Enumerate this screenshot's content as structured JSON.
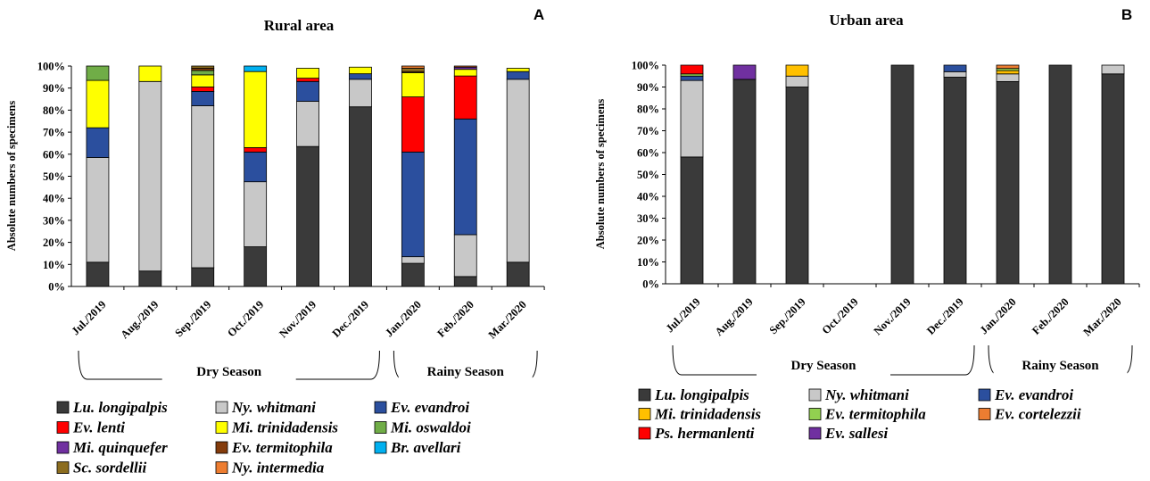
{
  "chart_data": [
    {
      "type": "bar",
      "stacked": true,
      "title": "Rural area",
      "panel_letter": "A",
      "ylabel": "Absolute numbers of specimens",
      "ylim": [
        0,
        100
      ],
      "yticks": [
        "0%",
        "10%",
        "20%",
        "30%",
        "40%",
        "50%",
        "60%",
        "70%",
        "80%",
        "90%",
        "100%"
      ],
      "categories": [
        "Jul./2019",
        "Aug./2019",
        "Sep./2019",
        "Oct./2019",
        "Nov./2019",
        "Dec./2019",
        "Jan./2020",
        "Feb./2020",
        "Mar./2020"
      ],
      "seasons": [
        {
          "label": "Dry Season",
          "from": 0,
          "to": 5
        },
        {
          "label": "Rainy Season",
          "from": 6,
          "to": 8
        }
      ],
      "series": [
        {
          "name": "Lu. longipalpis",
          "color": "#3a3a3a",
          "values": [
            11,
            7,
            8.5,
            18,
            63.5,
            81.5,
            10.5,
            4.5,
            11
          ]
        },
        {
          "name": "Ny. whitmani",
          "color": "#c8c8c8",
          "values": [
            47.5,
            86,
            73.5,
            29.5,
            20.5,
            12.5,
            3,
            19,
            83
          ]
        },
        {
          "name": "Ev. evandroi",
          "color": "#2b4f9e",
          "values": [
            13.5,
            0,
            6.5,
            13.5,
            9,
            2.5,
            47.5,
            52.5,
            3.5
          ]
        },
        {
          "name": "Ev. lenti",
          "color": "#ff0000",
          "values": [
            0,
            0,
            2,
            2,
            1.5,
            0,
            25,
            19.5,
            0
          ]
        },
        {
          "name": "Mi. trinidadensis",
          "color": "#ffff00",
          "values": [
            21.5,
            7,
            5.5,
            34.5,
            4.5,
            3,
            11,
            3,
            1.5
          ]
        },
        {
          "name": "Mi. oswaldoi",
          "color": "#70ad47",
          "values": [
            6.5,
            0,
            2,
            0,
            0,
            0,
            0,
            0,
            0
          ]
        },
        {
          "name": "Mi. quinquefer",
          "color": "#7030a0",
          "values": [
            0,
            0,
            0,
            0,
            0,
            0,
            0,
            1,
            0
          ]
        },
        {
          "name": "Ev. termitophila",
          "color": "#843c0c",
          "values": [
            0,
            0,
            1,
            0,
            0,
            0,
            0.5,
            0,
            0
          ]
        },
        {
          "name": "Br. avellari",
          "color": "#00b0f0",
          "values": [
            0,
            0,
            0,
            2.5,
            0,
            0,
            0,
            0,
            0
          ]
        },
        {
          "name": "Sc. sordellii",
          "color": "#8c6d1f",
          "values": [
            0,
            0,
            1,
            0,
            0,
            0,
            1.5,
            0,
            0
          ]
        },
        {
          "name": "Ny. intermedia",
          "color": "#ed7d31",
          "values": [
            0,
            0,
            0,
            0,
            0,
            0,
            1,
            0.5,
            0
          ]
        }
      ]
    },
    {
      "type": "bar",
      "stacked": true,
      "title": "Urban area",
      "panel_letter": "B",
      "ylabel": "Absolute numbers of specimens",
      "ylim": [
        0,
        100
      ],
      "yticks": [
        "0%",
        "10%",
        "20%",
        "30%",
        "40%",
        "50%",
        "60%",
        "70%",
        "80%",
        "90%",
        "100%"
      ],
      "categories": [
        "Jul./2019",
        "Aug./2019",
        "Sep./2019",
        "Oct./2019",
        "Nov./2019",
        "Dec./2019",
        "Jan./2020",
        "Feb./2020",
        "Mar./2020"
      ],
      "seasons": [
        {
          "label": "Dry Season",
          "from": 0,
          "to": 5
        },
        {
          "label": "Rainy Season",
          "from": 6,
          "to": 8
        }
      ],
      "series": [
        {
          "name": "Lu. longipalpis",
          "color": "#3a3a3a",
          "values": [
            58,
            93.5,
            90,
            0,
            100,
            94.5,
            92.5,
            100,
            96
          ]
        },
        {
          "name": "Ny. whitmani",
          "color": "#c8c8c8",
          "values": [
            35,
            0,
            5,
            0,
            0,
            2.5,
            3.5,
            0,
            4
          ]
        },
        {
          "name": "Ev. evandroi",
          "color": "#2b4f9e",
          "values": [
            2,
            0,
            0,
            0,
            0,
            3,
            0,
            0,
            0
          ]
        },
        {
          "name": "Mi. trinidadensis",
          "color": "#ffc000",
          "values": [
            0,
            0,
            5,
            0,
            0,
            0,
            1.5,
            0,
            0
          ]
        },
        {
          "name": "Ev. termitophila",
          "color": "#92d050",
          "values": [
            1,
            0,
            0,
            0,
            0,
            0,
            1,
            0,
            0
          ]
        },
        {
          "name": "Ev. cortelezzii",
          "color": "#ed7d31",
          "values": [
            0,
            0,
            0,
            0,
            0,
            0,
            1.5,
            0,
            0
          ]
        },
        {
          "name": "Ps. hermanlenti",
          "color": "#ff0000",
          "values": [
            4,
            0,
            0,
            0,
            0,
            0,
            0,
            0,
            0
          ]
        },
        {
          "name": "Ev. sallesi",
          "color": "#7030a0",
          "values": [
            0,
            6.5,
            0,
            0,
            0,
            0,
            0,
            0,
            0
          ]
        }
      ]
    }
  ]
}
